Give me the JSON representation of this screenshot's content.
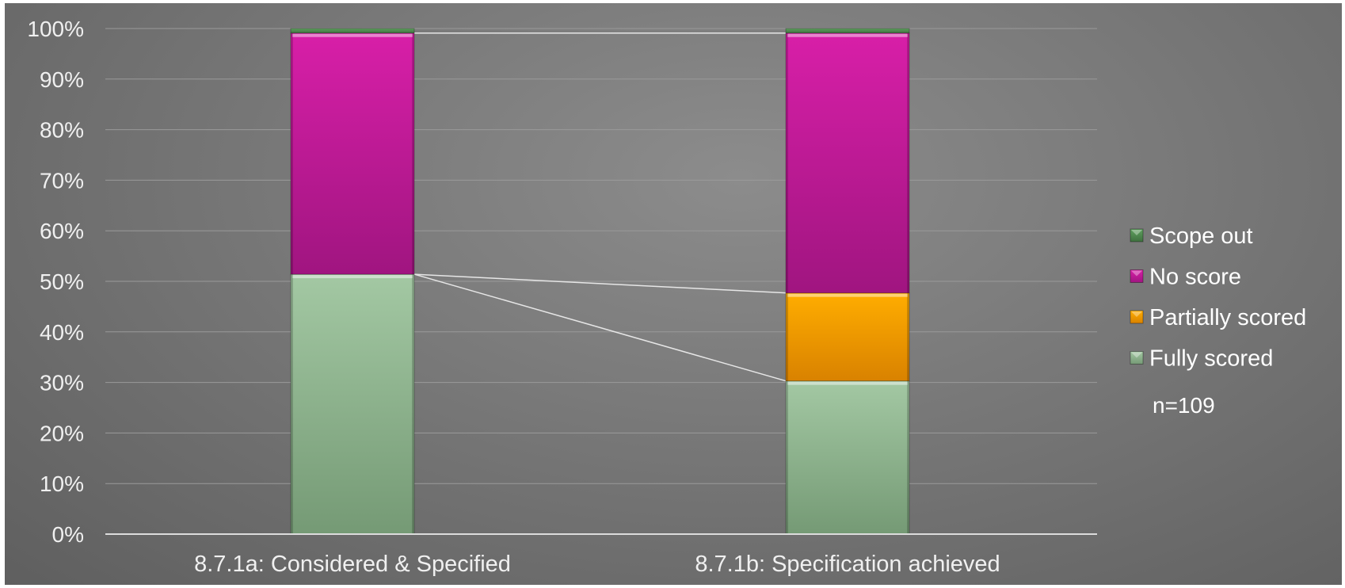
{
  "chart_data": {
    "type": "bar",
    "stacked": true,
    "percent": true,
    "categories": [
      "8.7.1a: Considered & Specified",
      "8.7.1b: Specification achieved"
    ],
    "series": [
      {
        "name": "Fully scored",
        "values": [
          51.4,
          30.3
        ],
        "color": "#8db88d"
      },
      {
        "name": "Partially scored",
        "values": [
          0,
          17.4
        ],
        "color": "#f2a000"
      },
      {
        "name": "No score",
        "values": [
          47.7,
          51.4
        ],
        "color": "#c0189c"
      },
      {
        "name": "Scope out",
        "values": [
          0.9,
          0.9
        ],
        "color": "#4e8a4e"
      }
    ],
    "y_ticks": [
      "0%",
      "10%",
      "20%",
      "30%",
      "40%",
      "50%",
      "60%",
      "70%",
      "80%",
      "90%",
      "100%"
    ],
    "ylim": [
      0,
      100
    ],
    "grid": true,
    "legend_position": "right",
    "legend_order": [
      "Scope out",
      "No score",
      "Partially scored",
      "Fully scored"
    ],
    "annotation": "n=109",
    "series_lines": true
  },
  "colors": {
    "background": "#7f7f7f",
    "grid": "#9a9a9a",
    "text": "#f0f0f0",
    "connector": "#e6e6e6"
  }
}
